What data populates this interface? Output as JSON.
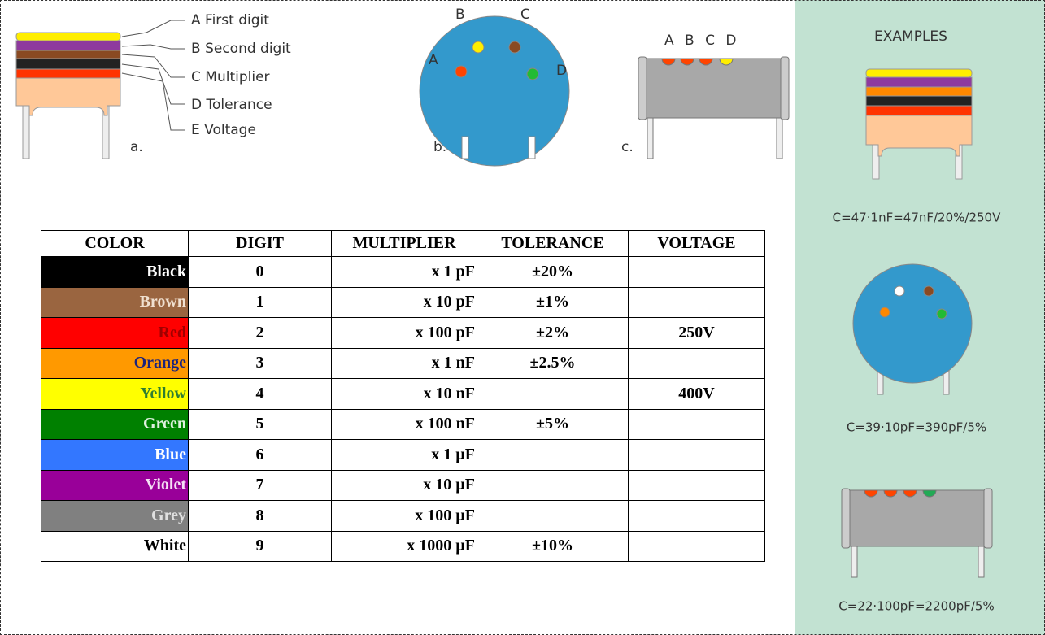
{
  "diagram": {
    "a": {
      "labels": [
        "A  First digit",
        "B  Second digit",
        "C  Multiplier",
        "D  Tolerance",
        "E  Voltage"
      ],
      "tag": "a."
    },
    "b": {
      "letters": [
        "A",
        "B",
        "C",
        "D"
      ],
      "tag": "b."
    },
    "c": {
      "letters": "A B C D",
      "tag": "c."
    }
  },
  "table": {
    "header": [
      "COLOR",
      "DIGIT",
      "MULTIPLIER",
      "TOLERANCE",
      "VOLTAGE"
    ],
    "rows": [
      [
        "Black",
        "0",
        "x 1 pF",
        "±20%",
        ""
      ],
      [
        "Brown",
        "1",
        "x 10 pF",
        "±1%",
        ""
      ],
      [
        "Red",
        "2",
        "x 100 pF",
        "±2%",
        "250V"
      ],
      [
        "Orange",
        "3",
        "x 1 nF",
        "±2.5%",
        ""
      ],
      [
        "Yellow",
        "4",
        "x 10 nF",
        "",
        "400V"
      ],
      [
        "Green",
        "5",
        "x 100 nF",
        "±5%",
        ""
      ],
      [
        "Blue",
        "6",
        "x 1 µF",
        "",
        ""
      ],
      [
        "Violet",
        "7",
        "x 10 µF",
        "",
        ""
      ],
      [
        "Grey",
        "8",
        "x 100 µF",
        "",
        ""
      ],
      [
        "White",
        "9",
        "x 1000 µF",
        "±10%",
        ""
      ]
    ]
  },
  "examples": {
    "title": "EXAMPLES",
    "captions": [
      "C=47·1nF=47nF/20%/250V",
      "C=39·10pF=390pF/5%",
      "C=22·100pF=2200pF/5%"
    ]
  }
}
